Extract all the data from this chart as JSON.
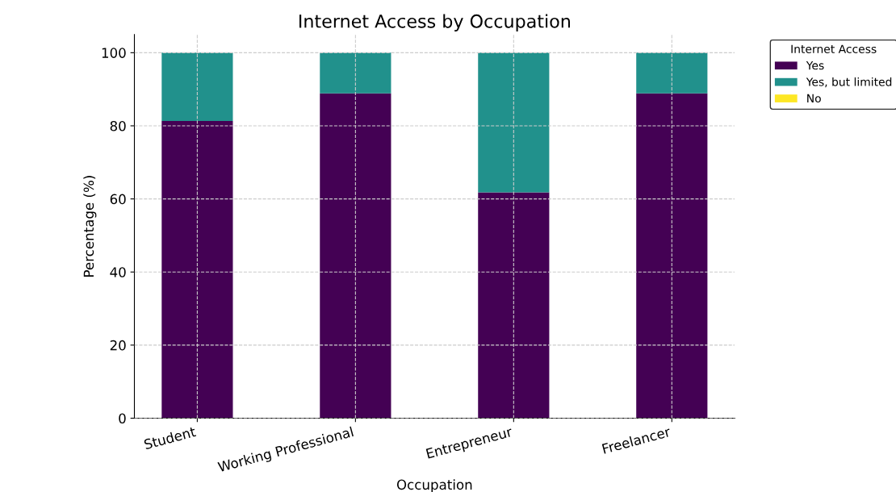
{
  "chart_data": {
    "type": "bar",
    "title": "Internet Access by Occupation",
    "xlabel": "Occupation",
    "ylabel": "Percentage (%)",
    "legend_title": "Internet Access",
    "categories": [
      "Student",
      "Working Professional",
      "Entrepreneur",
      "Freelancer"
    ],
    "series": [
      {
        "name": "Yes",
        "color": "#440154",
        "values": [
          81.3,
          88.9,
          61.8,
          88.9
        ]
      },
      {
        "name": "Yes, but limited",
        "color": "#21918c",
        "values": [
          18.7,
          11.1,
          38.2,
          11.1
        ]
      },
      {
        "name": "No",
        "color": "#fde725",
        "values": [
          0,
          0,
          0,
          0
        ]
      }
    ],
    "stacked": true,
    "ylim": [
      0,
      105
    ],
    "yticks": [
      0,
      20,
      40,
      60,
      80,
      100
    ],
    "grid": true,
    "legend": "top right"
  }
}
